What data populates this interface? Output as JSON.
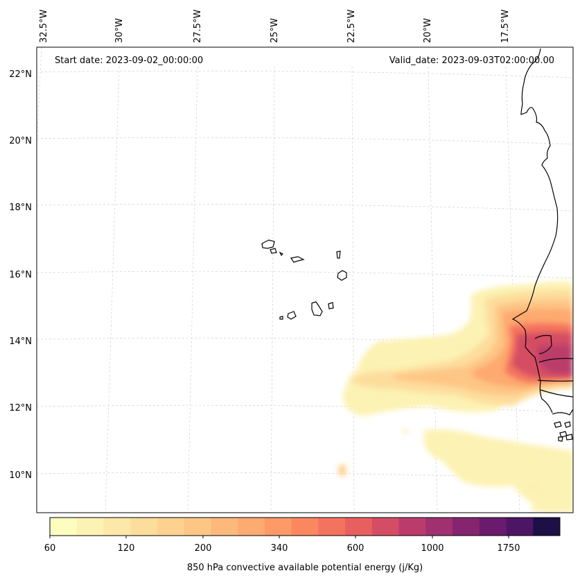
{
  "header": {
    "start_date": "Start date: 2023-09-02_00:00:00",
    "valid_date": "Valid_date: 2023-09-03T02:00:00.00"
  },
  "lon_labels": [
    "32.5°W",
    "30°W",
    "27.5°W",
    "25°W",
    "22.5°W",
    "20°W",
    "17.5°W"
  ],
  "lat_labels": [
    "22°N",
    "20°N",
    "18°N",
    "16°N",
    "14°N",
    "12°N",
    "10°N"
  ],
  "colorbar": {
    "label": "850 hPa convective available potential energy (j/Kg)",
    "tick_labels": [
      "60",
      "120",
      "200",
      "340",
      "600",
      "1000",
      "1750"
    ],
    "colors": [
      "#fcfdbf",
      "#fcf2b3",
      "#fce8a8",
      "#fddd9c",
      "#fdd291",
      "#fdc685",
      "#fdb97b",
      "#feab71",
      "#fe9a67",
      "#fb8761",
      "#f4735e",
      "#e7605f",
      "#d44d64",
      "#bb3c6a",
      "#a0306f",
      "#85256f",
      "#6a1b6d",
      "#4d1664",
      "#1d1046"
    ]
  },
  "map": {
    "region": "Cape Verde islands and West African coast (Senegal / Gambia)",
    "lon_range": [
      "33°W",
      "16°W"
    ],
    "lat_range": [
      "9°N",
      "22.8°N"
    ]
  }
}
